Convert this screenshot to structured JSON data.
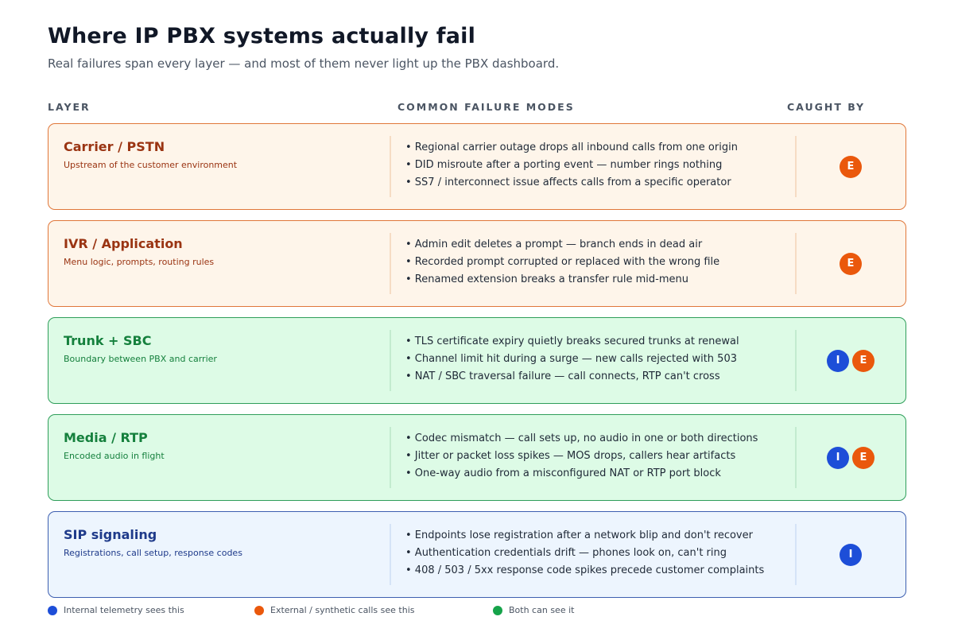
{
  "title": "Where IP PBX systems actually fail",
  "subtitle": "Real failures span every layer — and most of them never light up the PBX dashboard.",
  "columns": {
    "layer": "LAYER",
    "modes": "COMMON FAILURE MODES",
    "caught_by": "CAUGHT BY"
  },
  "colors": {
    "internal": "#1d4ed8",
    "external": "#ea580c",
    "both": "#16a34a"
  },
  "rows": [
    {
      "name": "Carrier / PSTN",
      "sub": "Upstream of the customer environment",
      "modes": [
        "• Regional carrier outage drops all inbound calls from one origin",
        "• DID misroute after a porting event — number rings nothing",
        "• SS7 / interconnect issue affects calls from a specific operator"
      ],
      "badges": [
        "E"
      ]
    },
    {
      "name": "IVR / Application",
      "sub": "Menu logic, prompts, routing rules",
      "modes": [
        "• Admin edit deletes a prompt — branch ends in dead air",
        "• Recorded prompt corrupted or replaced with the wrong file",
        "• Renamed extension breaks a transfer rule mid-menu"
      ],
      "badges": [
        "E"
      ]
    },
    {
      "name": "Trunk + SBC",
      "sub": "Boundary between PBX and carrier",
      "modes": [
        "• TLS certificate expiry quietly breaks secured trunks at renewal",
        "• Channel limit hit during a surge — new calls rejected with 503",
        "• NAT / SBC traversal failure — call connects, RTP can't cross"
      ],
      "badges": [
        "I",
        "E"
      ]
    },
    {
      "name": "Media / RTP",
      "sub": "Encoded audio in flight",
      "modes": [
        "• Codec mismatch — call sets up, no audio in one or both directions",
        "• Jitter or packet loss spikes — MOS drops, callers hear artifacts",
        "• One-way audio from a misconfigured NAT or RTP port block"
      ],
      "badges": [
        "I",
        "E"
      ]
    },
    {
      "name": "SIP signaling",
      "sub": "Registrations, call setup, response codes",
      "modes": [
        "• Endpoints lose registration after a network blip and don't recover",
        "• Authentication credentials drift — phones look on, can't ring",
        "• 408 / 503 / 5xx response code spikes precede customer complaints"
      ],
      "badges": [
        "I"
      ]
    }
  ],
  "legend": [
    {
      "label": "Internal telemetry sees this",
      "color": "#1d4ed8"
    },
    {
      "label": "External / synthetic calls see this",
      "color": "#ea580c"
    },
    {
      "label": "Both can see it",
      "color": "#16a34a"
    }
  ]
}
